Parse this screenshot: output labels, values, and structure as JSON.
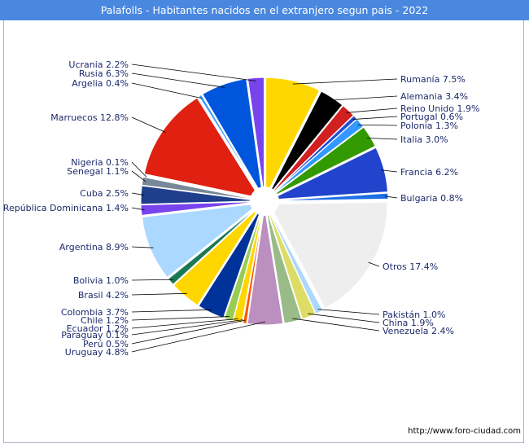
{
  "chart_data": {
    "type": "pie",
    "title": "Palafolls - Habitantes nacidos en el extranjero segun pais - 2022",
    "unit": "%",
    "slices": [
      {
        "label": "Rumanía",
        "value": 7.5,
        "color": "#ffd700"
      },
      {
        "label": "Alemania",
        "value": 3.4,
        "color": "#000000"
      },
      {
        "label": "Reino Unido",
        "value": 1.9,
        "color": "#d21f1f"
      },
      {
        "label": "Portugal",
        "value": 0.6,
        "color": "#1f4fd6"
      },
      {
        "label": "Polonia",
        "value": 1.3,
        "color": "#3399ff"
      },
      {
        "label": "Italia",
        "value": 3.0,
        "color": "#339900"
      },
      {
        "label": "Francia",
        "value": 6.2,
        "color": "#2244cc"
      },
      {
        "label": "Bulgaria",
        "value": 0.8,
        "color": "#1d6fe8"
      },
      {
        "label": "Otros",
        "value": 17.4,
        "color": "#eeeeee"
      },
      {
        "label": "Pakistán",
        "value": 1.0,
        "color": "#aad8ff"
      },
      {
        "label": "China",
        "value": 1.9,
        "color": "#dddd66"
      },
      {
        "label": "Venezuela",
        "value": 2.4,
        "color": "#99bb88"
      },
      {
        "label": "Uruguay",
        "value": 4.8,
        "color": "#bb8fbf"
      },
      {
        "label": "Perú",
        "value": 0.5,
        "color": "#ff5500"
      },
      {
        "label": "Paraguay",
        "value": 0.1,
        "color": "#cc2222"
      },
      {
        "label": "Ecuador",
        "value": 1.2,
        "color": "#ffd700"
      },
      {
        "label": "Chile",
        "value": 1.2,
        "color": "#99cc55"
      },
      {
        "label": "Colombia",
        "value": 3.7,
        "color": "#003399"
      },
      {
        "label": "Brasil",
        "value": 4.2,
        "color": "#ffd700"
      },
      {
        "label": "Bolivia",
        "value": 1.0,
        "color": "#1a7a55"
      },
      {
        "label": "Argentina",
        "value": 8.9,
        "color": "#aad8ff"
      },
      {
        "label": "República Dominicana",
        "value": 1.4,
        "color": "#7744ee"
      },
      {
        "label": "Cuba",
        "value": 2.5,
        "color": "#1f3f8c"
      },
      {
        "label": "Senegal",
        "value": 1.1,
        "color": "#778899"
      },
      {
        "label": "Nigeria",
        "value": 0.1,
        "color": "#dddd66"
      },
      {
        "label": "Marruecos",
        "value": 12.8,
        "color": "#e02010"
      },
      {
        "label": "Argelia",
        "value": 0.4,
        "color": "#3399ff"
      },
      {
        "label": "Rusia",
        "value": 6.3,
        "color": "#0055dd"
      },
      {
        "label": "Ucrania",
        "value": 2.2,
        "color": "#7744ee"
      }
    ],
    "legend": "none",
    "labels": "outside-with-leaders"
  },
  "footer": {
    "source_url": "http://www.foro-ciudad.com"
  },
  "colors": {
    "title_bg": "#4a88e0",
    "title_text": "#ffffff",
    "label_text": "#1d2a6b",
    "leader_line": "#000000"
  }
}
